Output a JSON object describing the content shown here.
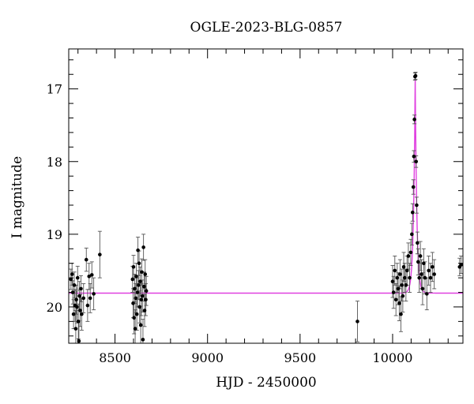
{
  "chart_data": {
    "type": "scatter",
    "title": "OGLE-2023-BLG-0857",
    "xlabel": "HJD - 2450000",
    "ylabel": "I magnitude",
    "xlim": [
      8250,
      10380
    ],
    "ylim": [
      20.5,
      16.45
    ],
    "y_inverted": true,
    "xticks": [
      8500,
      9000,
      9500,
      10000
    ],
    "yticks": [
      17,
      18,
      19,
      20
    ],
    "grid": false,
    "legend": "none",
    "colors": {
      "data": "#000000",
      "errorbar": "#555555",
      "model": "#e040e0"
    },
    "series": [
      {
        "kind": "points-with-errorbars",
        "points": [
          {
            "x": 8262,
            "y": 19.62,
            "e": 0.14
          },
          {
            "x": 8268,
            "y": 19.55,
            "e": 0.15
          },
          {
            "x": 8272,
            "y": 19.8,
            "e": 0.16
          },
          {
            "x": 8276,
            "y": 20.1,
            "e": 0.2
          },
          {
            "x": 8280,
            "y": 19.7,
            "e": 0.18
          },
          {
            "x": 8284,
            "y": 19.98,
            "e": 0.22
          },
          {
            "x": 8288,
            "y": 20.3,
            "e": 0.25
          },
          {
            "x": 8291,
            "y": 19.9,
            "e": 0.2
          },
          {
            "x": 8295,
            "y": 20.0,
            "e": 0.22
          },
          {
            "x": 8298,
            "y": 19.6,
            "e": 0.16
          },
          {
            "x": 8302,
            "y": 20.2,
            "e": 0.24
          },
          {
            "x": 8305,
            "y": 20.47,
            "e": 0.28
          },
          {
            "x": 8308,
            "y": 19.85,
            "e": 0.2
          },
          {
            "x": 8312,
            "y": 20.05,
            "e": 0.22
          },
          {
            "x": 8316,
            "y": 19.75,
            "e": 0.18
          },
          {
            "x": 8320,
            "y": 20.1,
            "e": 0.22
          },
          {
            "x": 8330,
            "y": 19.88,
            "e": 0.2
          },
          {
            "x": 8345,
            "y": 19.35,
            "e": 0.16
          },
          {
            "x": 8352,
            "y": 19.98,
            "e": 0.22
          },
          {
            "x": 8360,
            "y": 19.58,
            "e": 0.18
          },
          {
            "x": 8366,
            "y": 19.88,
            "e": 0.2
          },
          {
            "x": 8375,
            "y": 19.56,
            "e": 0.18
          },
          {
            "x": 8385,
            "y": 19.82,
            "e": 0.22
          },
          {
            "x": 8418,
            "y": 19.28,
            "e": 0.32
          },
          {
            "x": 8595,
            "y": 19.62,
            "e": 0.18
          },
          {
            "x": 8598,
            "y": 19.95,
            "e": 0.2
          },
          {
            "x": 8600,
            "y": 19.45,
            "e": 0.16
          },
          {
            "x": 8603,
            "y": 20.15,
            "e": 0.22
          },
          {
            "x": 8606,
            "y": 19.75,
            "e": 0.2
          },
          {
            "x": 8609,
            "y": 20.3,
            "e": 0.26
          },
          {
            "x": 8612,
            "y": 19.88,
            "e": 0.2
          },
          {
            "x": 8615,
            "y": 19.58,
            "e": 0.18
          },
          {
            "x": 8618,
            "y": 20.1,
            "e": 0.22
          },
          {
            "x": 8621,
            "y": 19.8,
            "e": 0.2
          },
          {
            "x": 8624,
            "y": 19.22,
            "e": 0.18
          },
          {
            "x": 8627,
            "y": 19.7,
            "e": 0.2
          },
          {
            "x": 8630,
            "y": 19.4,
            "e": 0.17
          },
          {
            "x": 8633,
            "y": 20.0,
            "e": 0.22
          },
          {
            "x": 8636,
            "y": 19.65,
            "e": 0.2
          },
          {
            "x": 8639,
            "y": 20.25,
            "e": 0.26
          },
          {
            "x": 8642,
            "y": 19.9,
            "e": 0.22
          },
          {
            "x": 8645,
            "y": 19.52,
            "e": 0.18
          },
          {
            "x": 8648,
            "y": 19.85,
            "e": 0.22
          },
          {
            "x": 8651,
            "y": 20.45,
            "e": 0.28
          },
          {
            "x": 8654,
            "y": 19.18,
            "e": 0.18
          },
          {
            "x": 8657,
            "y": 19.72,
            "e": 0.2
          },
          {
            "x": 8660,
            "y": 20.05,
            "e": 0.22
          },
          {
            "x": 8663,
            "y": 19.55,
            "e": 0.2
          },
          {
            "x": 8666,
            "y": 19.9,
            "e": 0.22
          },
          {
            "x": 8669,
            "y": 19.78,
            "e": 0.2
          },
          {
            "x": 9810,
            "y": 20.2,
            "e": 0.28
          },
          {
            "x": 10000,
            "y": 19.65,
            "e": 0.22
          },
          {
            "x": 10005,
            "y": 19.8,
            "e": 0.22
          },
          {
            "x": 10012,
            "y": 19.5,
            "e": 0.2
          },
          {
            "x": 10018,
            "y": 19.9,
            "e": 0.22
          },
          {
            "x": 10025,
            "y": 19.6,
            "e": 0.2
          },
          {
            "x": 10030,
            "y": 19.75,
            "e": 0.22
          },
          {
            "x": 10036,
            "y": 19.95,
            "e": 0.24
          },
          {
            "x": 10040,
            "y": 19.55,
            "e": 0.2
          },
          {
            "x": 10045,
            "y": 20.1,
            "e": 0.24
          },
          {
            "x": 10050,
            "y": 19.7,
            "e": 0.22
          },
          {
            "x": 10055,
            "y": 19.85,
            "e": 0.22
          },
          {
            "x": 10060,
            "y": 19.45,
            "e": 0.2
          },
          {
            "x": 10065,
            "y": 19.6,
            "e": 0.2
          },
          {
            "x": 10072,
            "y": 19.7,
            "e": 0.22
          },
          {
            "x": 10078,
            "y": 19.5,
            "e": 0.2
          },
          {
            "x": 10085,
            "y": 19.3,
            "e": 0.18
          },
          {
            "x": 10092,
            "y": 19.6,
            "e": 0.2
          },
          {
            "x": 10098,
            "y": 19.25,
            "e": 0.18
          },
          {
            "x": 10104,
            "y": 19.0,
            "e": 0.15
          },
          {
            "x": 10108,
            "y": 18.7,
            "e": 0.12
          },
          {
            "x": 10112,
            "y": 18.35,
            "e": 0.1
          },
          {
            "x": 10115,
            "y": 17.93,
            "e": 0.08
          },
          {
            "x": 10118,
            "y": 17.42,
            "e": 0.06
          },
          {
            "x": 10121,
            "y": 16.83,
            "e": 0.05
          },
          {
            "x": 10124,
            "y": 16.82,
            "e": 0.05
          },
          {
            "x": 10127,
            "y": 18.0,
            "e": 0.08
          },
          {
            "x": 10130,
            "y": 18.6,
            "e": 0.11
          },
          {
            "x": 10134,
            "y": 19.12,
            "e": 0.15
          },
          {
            "x": 10138,
            "y": 19.38,
            "e": 0.18
          },
          {
            "x": 10144,
            "y": 19.6,
            "e": 0.2
          },
          {
            "x": 10150,
            "y": 19.3,
            "e": 0.2
          },
          {
            "x": 10156,
            "y": 19.55,
            "e": 0.2
          },
          {
            "x": 10162,
            "y": 19.75,
            "e": 0.22
          },
          {
            "x": 10168,
            "y": 19.4,
            "e": 0.2
          },
          {
            "x": 10175,
            "y": 19.6,
            "e": 0.22
          },
          {
            "x": 10185,
            "y": 19.82,
            "e": 0.22
          },
          {
            "x": 10195,
            "y": 19.5,
            "e": 0.2
          },
          {
            "x": 10205,
            "y": 19.6,
            "e": 0.2
          },
          {
            "x": 10215,
            "y": 19.45,
            "e": 0.2
          },
          {
            "x": 10225,
            "y": 19.55,
            "e": 0.2
          },
          {
            "x": 10362,
            "y": 19.45,
            "e": 0.12
          },
          {
            "x": 10370,
            "y": 19.42,
            "e": 0.12
          }
        ]
      },
      {
        "kind": "model-curve",
        "baseline": 19.81,
        "peak_x": 10122,
        "peak_y": 16.82
      }
    ]
  }
}
